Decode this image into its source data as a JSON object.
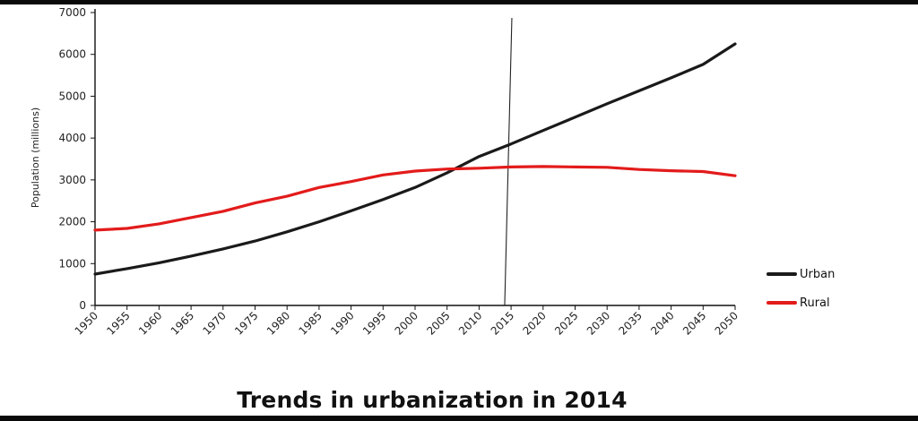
{
  "chart_data": {
    "type": "line",
    "title": "Trends in urbanization in 2014",
    "ylabel": "Population (millions)",
    "xlabel": "",
    "x": [
      1950,
      1955,
      1960,
      1965,
      1970,
      1975,
      1980,
      1985,
      1990,
      1995,
      2000,
      2005,
      2010,
      2015,
      2020,
      2025,
      2030,
      2035,
      2040,
      2045,
      2050
    ],
    "x_tick_labels": [
      "1950",
      "1955",
      "1960",
      "1965",
      "1970",
      "1975",
      "1980",
      "1985",
      "1990",
      "1995",
      "2000",
      "2005",
      "2010",
      "2015",
      "2020",
      "2025",
      "2030",
      "2035",
      "2040",
      "2045",
      "2050"
    ],
    "y_tick_labels": [
      "0",
      "1000",
      "2000",
      "3000",
      "4000",
      "5000",
      "6000",
      "7000"
    ],
    "ylim": [
      0,
      7000
    ],
    "xlim": [
      1950,
      2050
    ],
    "reference_line_x": 2014,
    "legend_position": "right",
    "grid": false,
    "series": [
      {
        "name": "Urban",
        "color": "#1a1a1a",
        "values": [
          750,
          880,
          1020,
          1180,
          1350,
          1540,
          1760,
          2000,
          2260,
          2530,
          2820,
          3170,
          3560,
          3860,
          4180,
          4500,
          4820,
          5130,
          5440,
          5760,
          6250
        ]
      },
      {
        "name": "Rural",
        "color": "#e31b1b",
        "values": [
          1800,
          1840,
          1950,
          2100,
          2250,
          2450,
          2610,
          2820,
          2960,
          3120,
          3210,
          3260,
          3280,
          3310,
          3320,
          3310,
          3300,
          3250,
          3220,
          3200,
          3100
        ]
      }
    ]
  }
}
